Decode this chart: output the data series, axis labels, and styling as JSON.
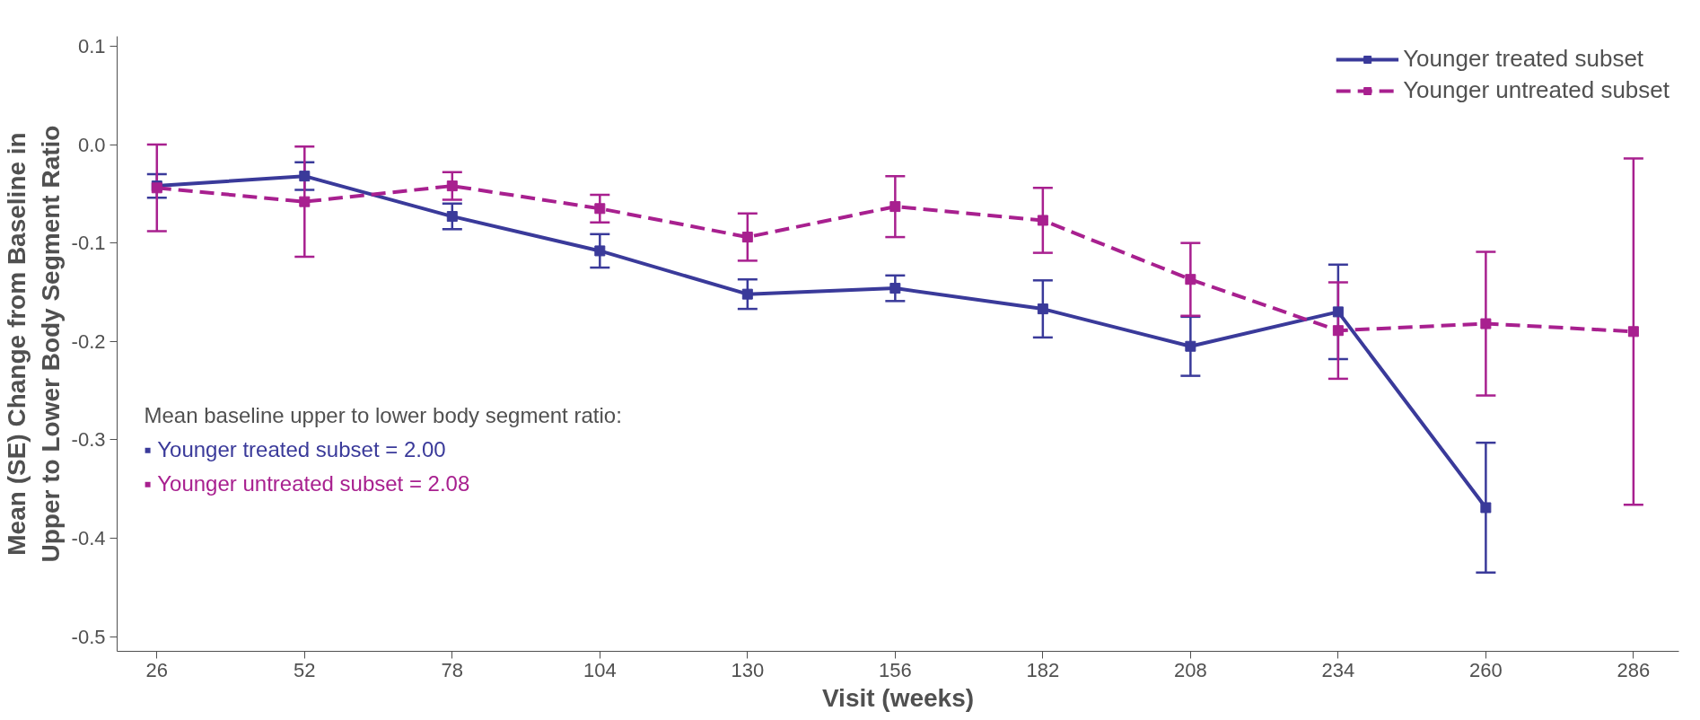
{
  "chart_data": {
    "type": "line",
    "xlabel": "Visit (weeks)",
    "ylabel": "Mean (SE) Change from Baseline in Upper to Lower Body Segment Ratio",
    "x": [
      26,
      52,
      78,
      104,
      130,
      156,
      182,
      208,
      234,
      260,
      286
    ],
    "series": [
      {
        "name": "Younger treated subset",
        "color": "#3a3a9a",
        "line_style": "solid",
        "values": [
          -0.042,
          -0.032,
          -0.073,
          -0.108,
          -0.152,
          -0.146,
          -0.167,
          -0.205,
          -0.17,
          -0.369,
          null
        ],
        "errors": [
          0.012,
          0.014,
          0.013,
          0.017,
          0.015,
          0.013,
          0.029,
          0.03,
          0.048,
          0.066,
          null
        ]
      },
      {
        "name": "Younger untreated subset",
        "color": "#a8208f",
        "line_style": "dashed",
        "values": [
          -0.044,
          -0.058,
          -0.042,
          -0.065,
          -0.094,
          -0.063,
          -0.077,
          -0.137,
          -0.189,
          -0.182,
          -0.19
        ],
        "errors": [
          0.044,
          0.056,
          0.014,
          0.014,
          0.024,
          0.031,
          0.033,
          0.037,
          0.049,
          0.073,
          0.176
        ]
      }
    ],
    "marker": "square",
    "xlim": [
      19,
      294
    ],
    "ylim": [
      -0.515,
      0.11
    ],
    "xticks": [
      26,
      52,
      78,
      104,
      130,
      156,
      182,
      208,
      234,
      260,
      286
    ],
    "yticks": [
      {
        "value": 0.1,
        "label": "0.1"
      },
      {
        "value": 0,
        "label": "0.0"
      },
      {
        "value": -0.1,
        "label": "-0.1"
      },
      {
        "value": -0.2,
        "label": "-0.2"
      },
      {
        "value": -0.3,
        "label": "-0.3"
      },
      {
        "value": -0.4,
        "label": "-0.4"
      },
      {
        "value": -0.5,
        "label": "-0.5"
      }
    ],
    "grid": false,
    "legend": "top right",
    "annotations": [
      "Mean baseline upper to lower body segment ratio:",
      "▪ Younger treated subset = 2.00",
      "▪ Younger untreated subset = 2.08"
    ]
  }
}
